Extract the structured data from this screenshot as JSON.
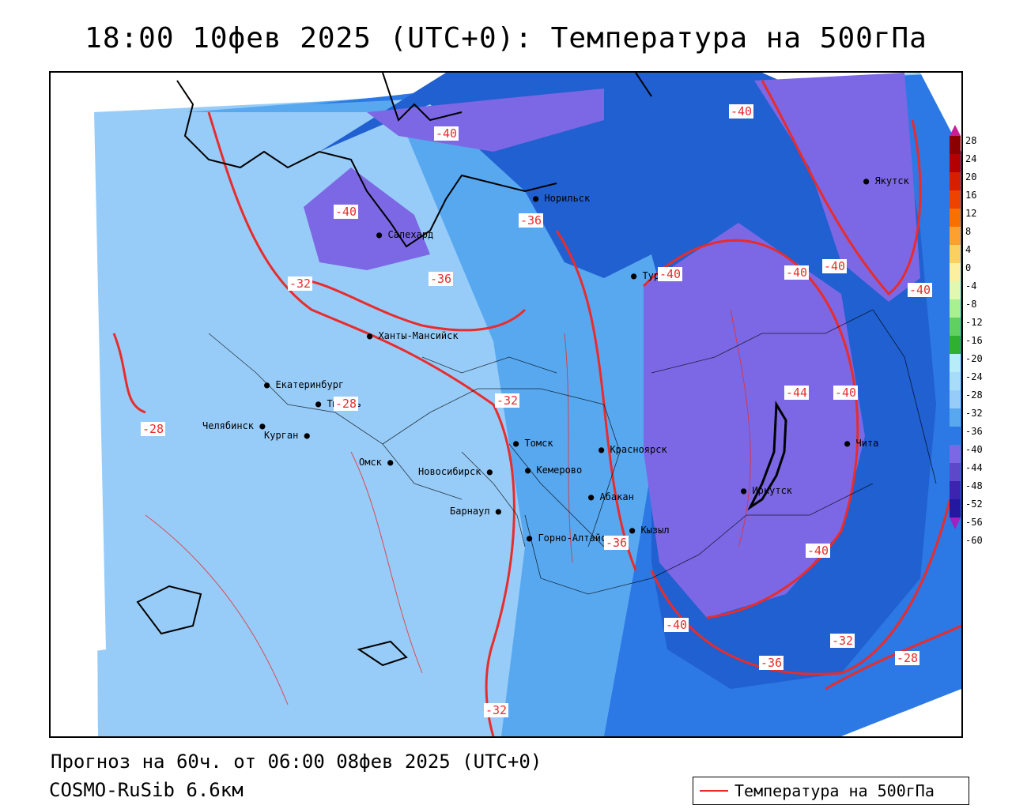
{
  "title": "18:00 10фев 2025 (UTC+0): Температура на 500гПа",
  "footer": {
    "forecast": "Прогноз на 60ч. от 06:00 08фев 2025 (UTC+0)",
    "model": "COSMO-RuSib 6.6км"
  },
  "legend": {
    "label": "Температура на 500гПа",
    "color": "#e82c2c"
  },
  "colorbar": {
    "labels": [
      "28",
      "24",
      "20",
      "16",
      "12",
      "8",
      "4",
      "0",
      "-4",
      "-8",
      "-12",
      "-16",
      "-20",
      "-24",
      "-28",
      "-32",
      "-36",
      "-40",
      "-44",
      "-48",
      "-52",
      "-56",
      "-60"
    ]
  },
  "cities": [
    {
      "name": "Норильск"
    },
    {
      "name": "Якутск"
    },
    {
      "name": "Салехард"
    },
    {
      "name": "Тура"
    },
    {
      "name": "Ханты-Мансийск"
    },
    {
      "name": "Екатеринбург"
    },
    {
      "name": "Тюмень"
    },
    {
      "name": "Челябинск"
    },
    {
      "name": "Курган"
    },
    {
      "name": "Омск"
    },
    {
      "name": "Новосибирск"
    },
    {
      "name": "Томск"
    },
    {
      "name": "Кемерово"
    },
    {
      "name": "Красноярск"
    },
    {
      "name": "Абакан"
    },
    {
      "name": "Барнаул"
    },
    {
      "name": "Горно-Алтайск"
    },
    {
      "name": "Кызыл"
    },
    {
      "name": "Иркутск"
    },
    {
      "name": "Чита"
    }
  ],
  "isotherm_labels": [
    "-40",
    "-40",
    "-40",
    "-36",
    "-36",
    "-32",
    "-40",
    "-40",
    "-40",
    "-40",
    "-44",
    "-40",
    "-32",
    "-28",
    "-36",
    "-40",
    "-40",
    "-32",
    "-28",
    "-36",
    "-32",
    "-28"
  ],
  "colors": {
    "c_m20": "#b8ecf8",
    "c_m24": "#a8dcf8",
    "c_m28": "#98ccf8",
    "c_m32": "#58a8f0",
    "c_m36": "#2c78e4",
    "c_m40": "#2060d0",
    "c_m44": "#7c68e4",
    "isotherm": "#e82c2c"
  }
}
